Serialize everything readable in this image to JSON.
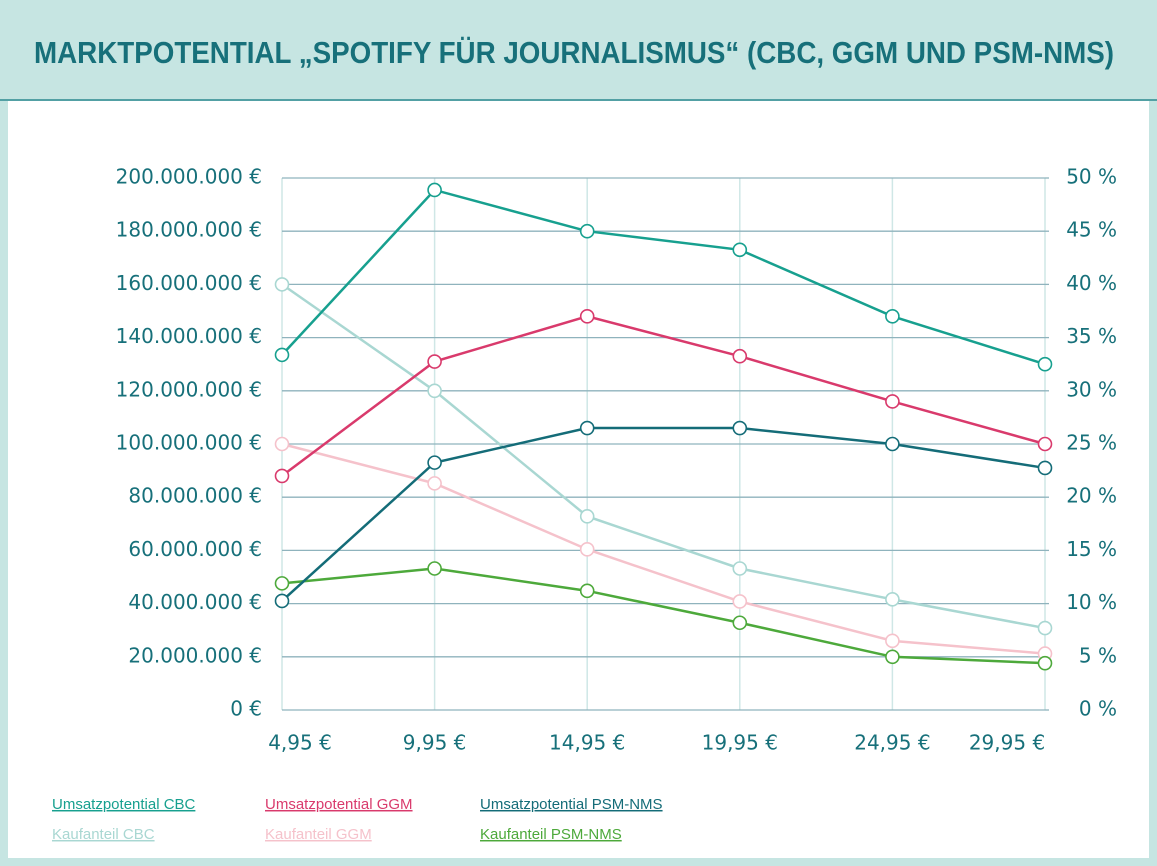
{
  "chart_data": {
    "type": "line",
    "title": "MARKTPOTENTIAL „SPOTIFY FÜR JOURNALISMUS“ (CBC, GGM UND PSM-NMS)",
    "x": [
      4.95,
      9.95,
      14.95,
      19.95,
      24.95,
      29.95
    ],
    "xlim": [
      4.95,
      29.95
    ],
    "xticks": [
      {
        "value": 4.95,
        "label": "4,95 €"
      },
      {
        "value": 9.95,
        "label": "9,95 €"
      },
      {
        "value": 14.95,
        "label": "14,95 €"
      },
      {
        "value": 19.95,
        "label": "19,95 €"
      },
      {
        "value": 24.95,
        "label": "24,95 €"
      },
      {
        "value": 29.95,
        "label": "29,95 €"
      }
    ],
    "ylim": [
      0,
      200000000
    ],
    "yticks": [
      {
        "value": 0,
        "label": "0 €"
      },
      {
        "value": 20000000,
        "label": "20.000.000 €"
      },
      {
        "value": 40000000,
        "label": "40.000.000 €"
      },
      {
        "value": 60000000,
        "label": "60.000.000 €"
      },
      {
        "value": 80000000,
        "label": "80.000.000 €"
      },
      {
        "value": 100000000,
        "label": "100.000.000 €"
      },
      {
        "value": 120000000,
        "label": "120.000.000 €"
      },
      {
        "value": 140000000,
        "label": "140.000.000 €"
      },
      {
        "value": 160000000,
        "label": "160.000.000 €"
      },
      {
        "value": 180000000,
        "label": "180.000.000 €"
      },
      {
        "value": 200000000,
        "label": "200.000.000 €"
      }
    ],
    "y2lim": [
      0,
      50
    ],
    "y2ticks": [
      {
        "value": 0,
        "label": "0 %"
      },
      {
        "value": 5,
        "label": "5 %"
      },
      {
        "value": 10,
        "label": "10 %"
      },
      {
        "value": 15,
        "label": "15 %"
      },
      {
        "value": 20,
        "label": "20 %"
      },
      {
        "value": 25,
        "label": "25 %"
      },
      {
        "value": 30,
        "label": "30 %"
      },
      {
        "value": 35,
        "label": "35 %"
      },
      {
        "value": 40,
        "label": "40 %"
      },
      {
        "value": 45,
        "label": "45 %"
      },
      {
        "value": 50,
        "label": "50 %"
      }
    ],
    "grid": true,
    "series": [
      {
        "name": "Umsatzpotential CBC",
        "color": "#17a08f",
        "values": [
          133500000,
          195500000,
          180000000,
          173000000,
          148000000,
          130000000
        ]
      },
      {
        "name": "Umsatzpotential GGM",
        "color": "#d93a6c",
        "values": [
          88000000,
          131000000,
          148000000,
          133000000,
          116000000,
          100000000
        ]
      },
      {
        "name": "Umsatzpotential PSM-NMS",
        "color": "#146c78",
        "values": [
          41000000,
          93000000,
          106000000,
          106000000,
          100000000,
          91000000
        ]
      },
      {
        "name": "Kaufanteil CBC",
        "color": "#a9d7d2",
        "axis": "y2",
        "values": [
          40,
          30,
          18.2,
          13.3,
          10.4,
          7.7
        ]
      },
      {
        "name": "Kaufanteil GGM",
        "color": "#f5c2cb",
        "axis": "y2",
        "values": [
          25,
          21.3,
          15.1,
          10.2,
          6.5,
          5.3
        ]
      },
      {
        "name": "Kaufanteil PSM-NMS",
        "color": "#4da93b",
        "axis": "y2",
        "values": [
          11.9,
          13.3,
          11.2,
          8.2,
          5,
          4.4
        ]
      }
    ]
  }
}
